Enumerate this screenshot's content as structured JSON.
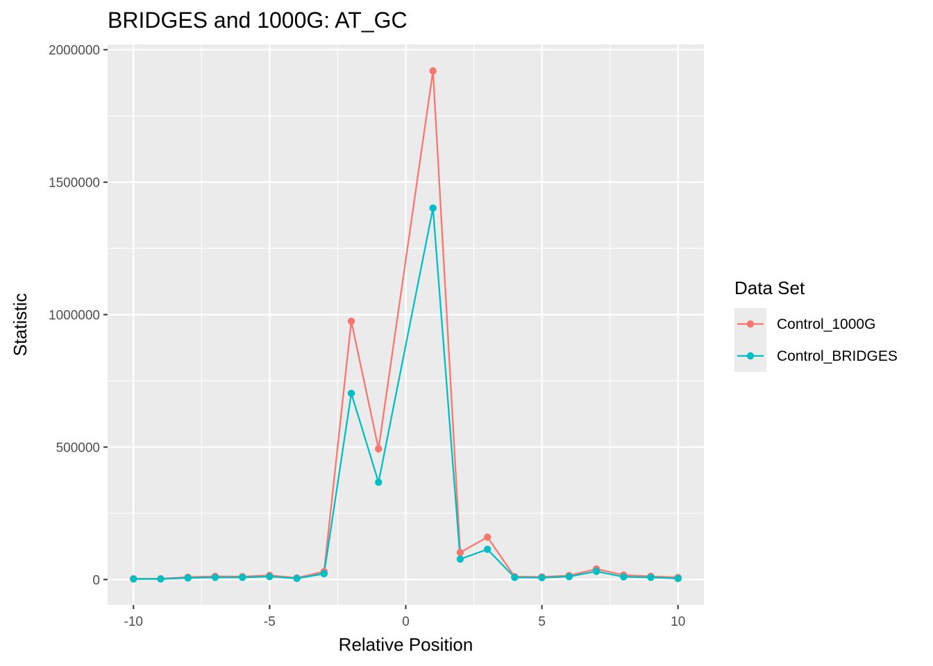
{
  "chart_data": {
    "type": "line",
    "title": "BRIDGES and 1000G: AT_GC",
    "xlabel": "Relative Position",
    "ylabel": "Statistic",
    "x": [
      -10,
      -9,
      -8,
      -7,
      -6,
      -5,
      -4,
      -3,
      -2,
      -1,
      1,
      2,
      3,
      4,
      5,
      6,
      7,
      8,
      9,
      10
    ],
    "xlim": [
      -10.95,
      10.95
    ],
    "ylim": [
      -96000,
      2020000
    ],
    "x_ticks": [
      -10,
      -5,
      0,
      5,
      10
    ],
    "x_tick_labels": [
      "-10",
      "-5",
      "0",
      "5",
      "10"
    ],
    "y_ticks": [
      0,
      500000,
      1000000,
      1500000,
      2000000
    ],
    "y_tick_labels": [
      "0",
      "500000",
      "1000000",
      "1500000",
      "2000000"
    ],
    "grid": true,
    "legend": {
      "title": "Data Set",
      "position": "right"
    },
    "series": [
      {
        "name": "Control_1000G",
        "color": "#f8766d",
        "values": [
          3000,
          3000,
          9000,
          12000,
          11000,
          16000,
          6000,
          30000,
          975000,
          493000,
          1920000,
          102000,
          160000,
          11000,
          10000,
          15000,
          40000,
          17000,
          12000,
          8000
        ]
      },
      {
        "name": "Control_BRIDGES",
        "color": "#00bfc4",
        "values": [
          2000,
          2000,
          6000,
          8000,
          8000,
          11000,
          4000,
          22000,
          703000,
          367000,
          1402000,
          77000,
          114000,
          8000,
          7000,
          11000,
          31000,
          10000,
          8000,
          4000
        ]
      }
    ]
  },
  "colors": {
    "panel_background": "#ebebeb",
    "grid_line": "#ffffff",
    "axis_text": "#4d4d4d"
  }
}
